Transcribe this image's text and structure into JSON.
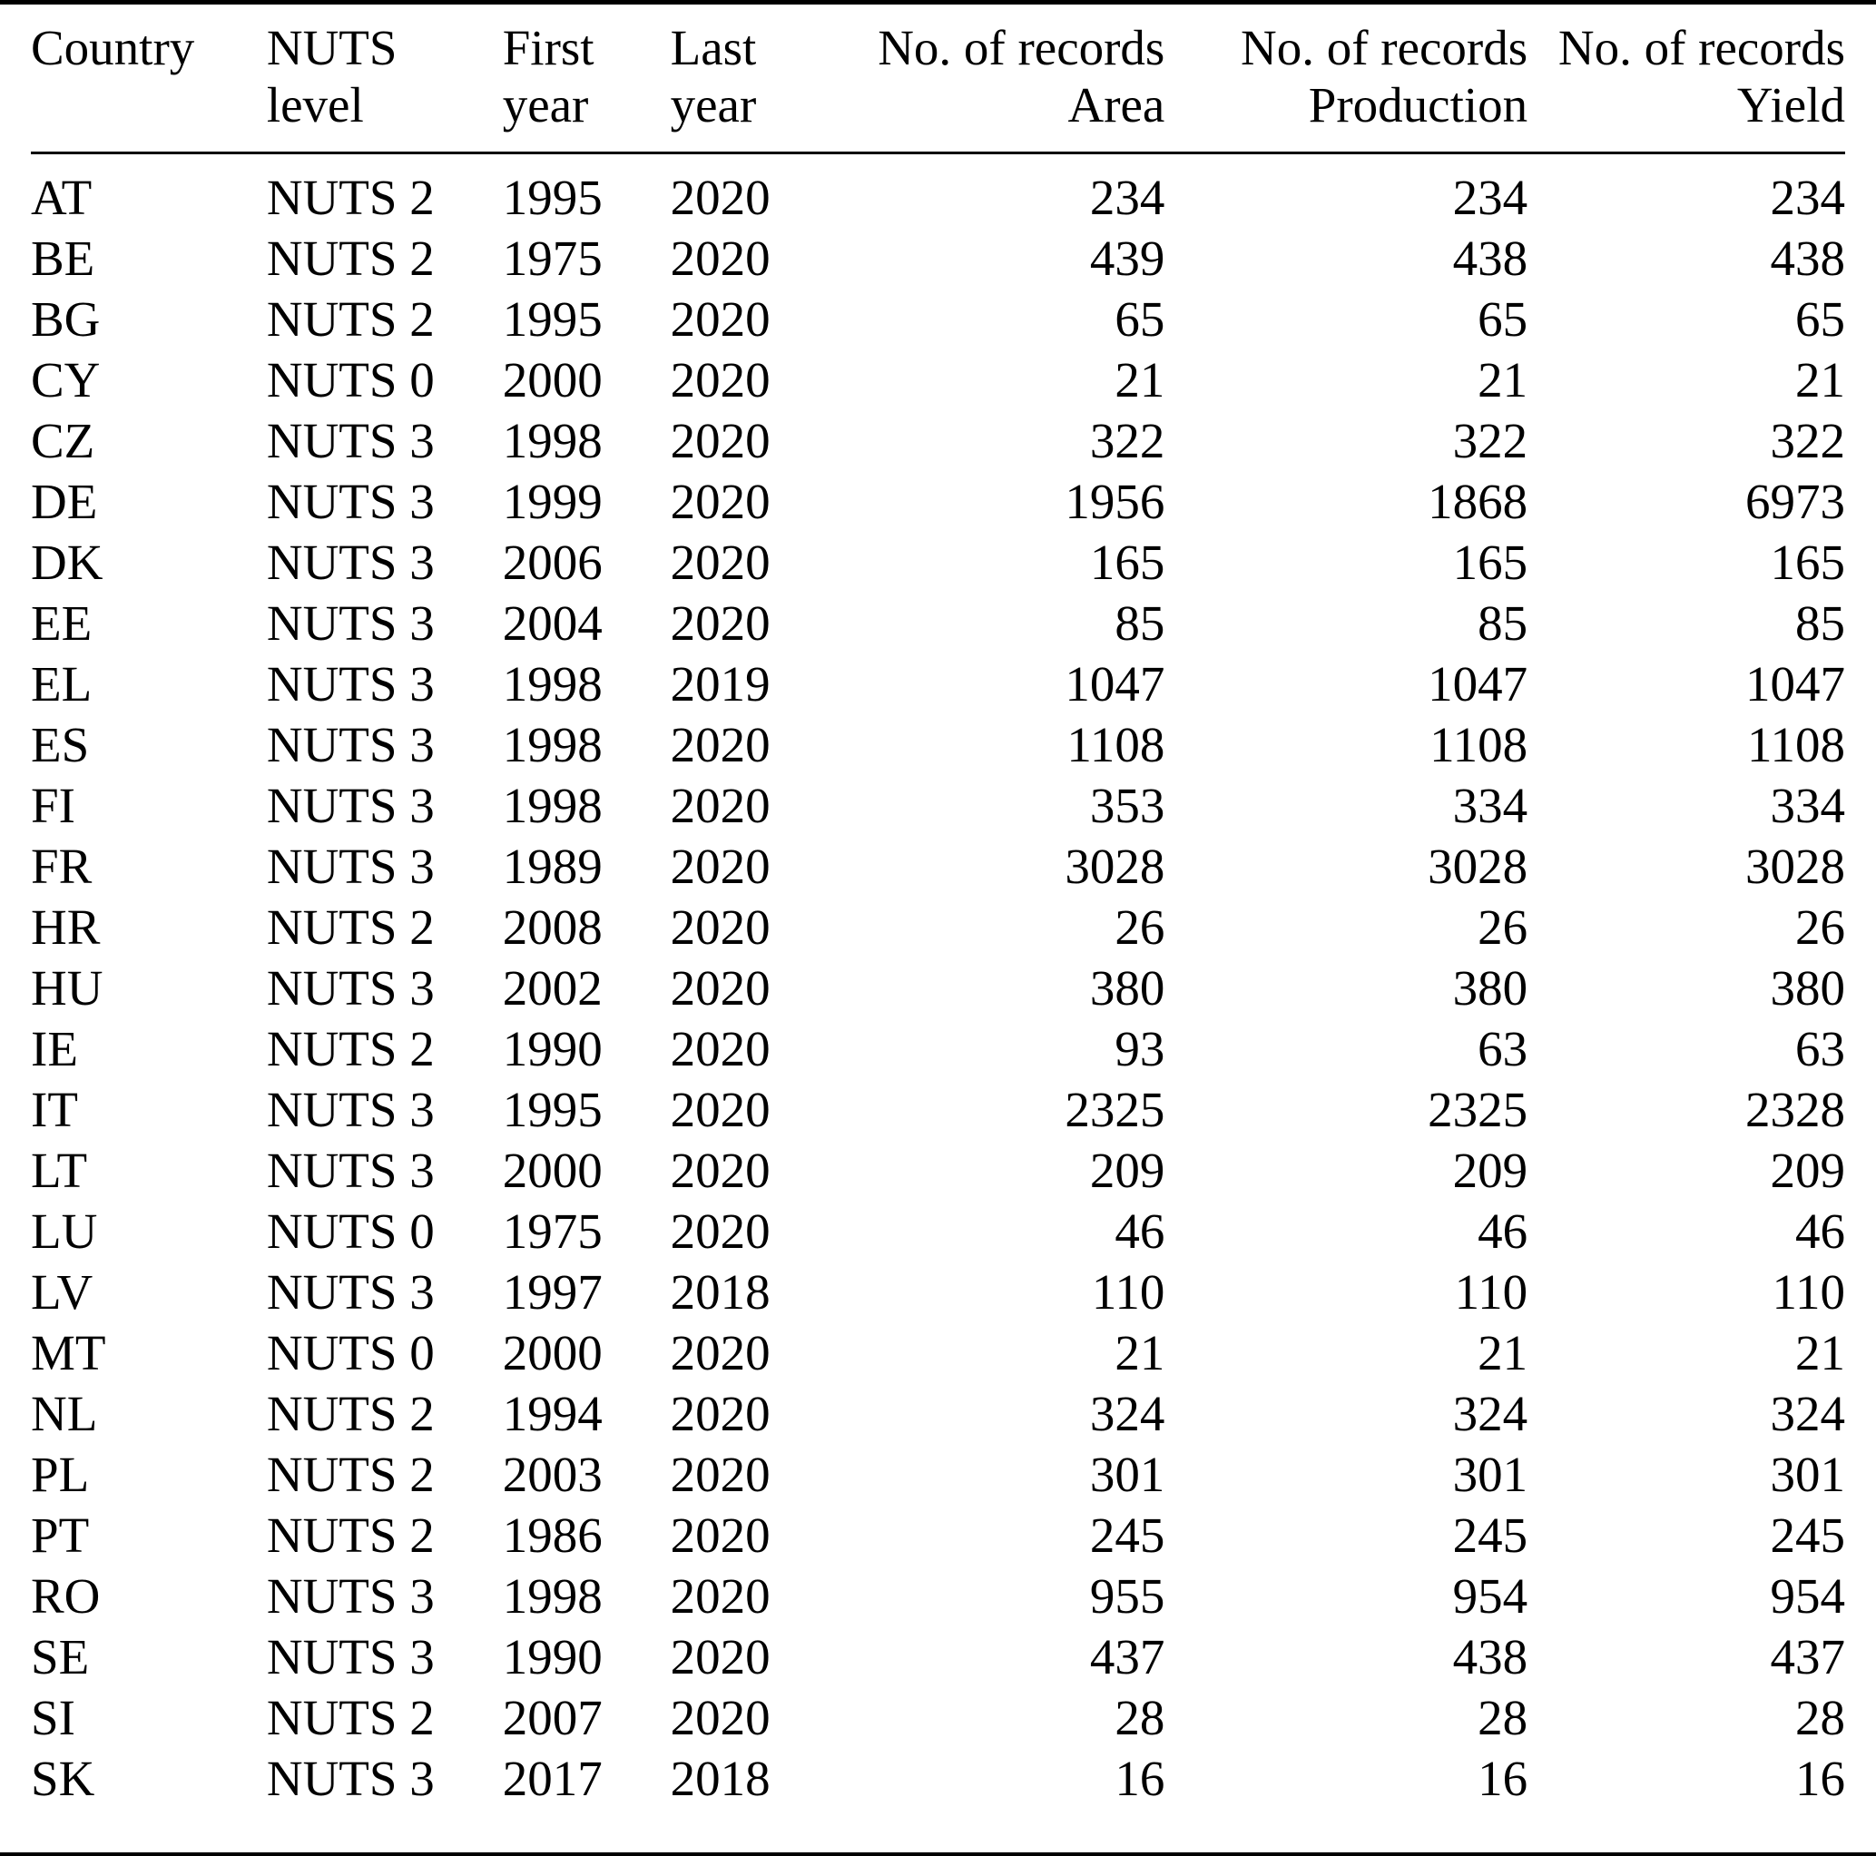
{
  "chart_data": {
    "type": "table",
    "columns": [
      {
        "line1": "Country",
        "line2": ""
      },
      {
        "line1": "NUTS",
        "line2": "level"
      },
      {
        "line1": "First",
        "line2": "year"
      },
      {
        "line1": "Last",
        "line2": "year"
      },
      {
        "line1": "No. of records",
        "line2": "Area"
      },
      {
        "line1": "No. of records",
        "line2": "Production"
      },
      {
        "line1": "No. of records",
        "line2": "Yield"
      }
    ],
    "rows": [
      [
        "AT",
        "NUTS 2",
        "1995",
        "2020",
        "234",
        "234",
        "234"
      ],
      [
        "BE",
        "NUTS 2",
        "1975",
        "2020",
        "439",
        "438",
        "438"
      ],
      [
        "BG",
        "NUTS 2",
        "1995",
        "2020",
        "65",
        "65",
        "65"
      ],
      [
        "CY",
        "NUTS 0",
        "2000",
        "2020",
        "21",
        "21",
        "21"
      ],
      [
        "CZ",
        "NUTS 3",
        "1998",
        "2020",
        "322",
        "322",
        "322"
      ],
      [
        "DE",
        "NUTS 3",
        "1999",
        "2020",
        "1956",
        "1868",
        "6973"
      ],
      [
        "DK",
        "NUTS 3",
        "2006",
        "2020",
        "165",
        "165",
        "165"
      ],
      [
        "EE",
        "NUTS 3",
        "2004",
        "2020",
        "85",
        "85",
        "85"
      ],
      [
        "EL",
        "NUTS 3",
        "1998",
        "2019",
        "1047",
        "1047",
        "1047"
      ],
      [
        "ES",
        "NUTS 3",
        "1998",
        "2020",
        "1108",
        "1108",
        "1108"
      ],
      [
        "FI",
        "NUTS 3",
        "1998",
        "2020",
        "353",
        "334",
        "334"
      ],
      [
        "FR",
        "NUTS 3",
        "1989",
        "2020",
        "3028",
        "3028",
        "3028"
      ],
      [
        "HR",
        "NUTS 2",
        "2008",
        "2020",
        "26",
        "26",
        "26"
      ],
      [
        "HU",
        "NUTS 3",
        "2002",
        "2020",
        "380",
        "380",
        "380"
      ],
      [
        "IE",
        "NUTS 2",
        "1990",
        "2020",
        "93",
        "63",
        "63"
      ],
      [
        "IT",
        "NUTS 3",
        "1995",
        "2020",
        "2325",
        "2325",
        "2328"
      ],
      [
        "LT",
        "NUTS 3",
        "2000",
        "2020",
        "209",
        "209",
        "209"
      ],
      [
        "LU",
        "NUTS 0",
        "1975",
        "2020",
        "46",
        "46",
        "46"
      ],
      [
        "LV",
        "NUTS 3",
        "1997",
        "2018",
        "110",
        "110",
        "110"
      ],
      [
        "MT",
        "NUTS 0",
        "2000",
        "2020",
        "21",
        "21",
        "21"
      ],
      [
        "NL",
        "NUTS 2",
        "1994",
        "2020",
        "324",
        "324",
        "324"
      ],
      [
        "PL",
        "NUTS 2",
        "2003",
        "2020",
        "301",
        "301",
        "301"
      ],
      [
        "PT",
        "NUTS 2",
        "1986",
        "2020",
        "245",
        "245",
        "245"
      ],
      [
        "RO",
        "NUTS 3",
        "1998",
        "2020",
        "955",
        "954",
        "954"
      ],
      [
        "SE",
        "NUTS 3",
        "1990",
        "2020",
        "437",
        "438",
        "437"
      ],
      [
        "SI",
        "NUTS 2",
        "2007",
        "2020",
        "28",
        "28",
        "28"
      ],
      [
        "SK",
        "NUTS 3",
        "2017",
        "2018",
        "16",
        "16",
        "16"
      ]
    ]
  }
}
